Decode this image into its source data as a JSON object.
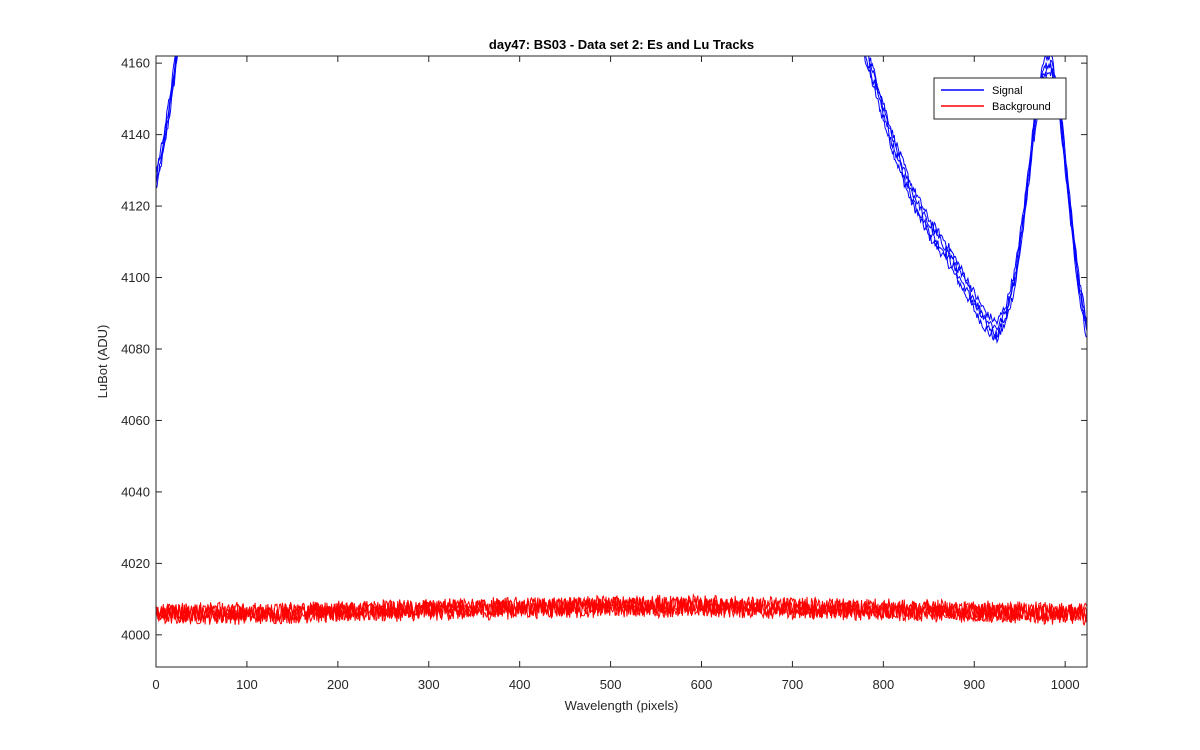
{
  "chart_data": {
    "type": "line",
    "title": "day47: BS03 - Data set 2: Es and Lu Tracks",
    "xlabel": "Wavelength (pixels)",
    "ylabel": "LuBot (ADU)",
    "xlim": [
      0,
      1024
    ],
    "ylim": [
      3991,
      4162
    ],
    "xticks": [
      0,
      100,
      200,
      300,
      400,
      500,
      600,
      700,
      800,
      900,
      1000
    ],
    "yticks": [
      4000,
      4020,
      4040,
      4060,
      4080,
      4100,
      4120,
      4140,
      4160
    ],
    "grid": false,
    "legend": {
      "location": "top-right",
      "entries": [
        "Signal",
        "Background"
      ]
    },
    "colors": {
      "Signal": "#0000ff",
      "Background": "#ff0000",
      "axes": "#262626"
    },
    "series": [
      {
        "name": "Signal",
        "color": "#0000ff",
        "traces": 4,
        "segments": [
          {
            "x": [
              0,
              5,
              10,
              15,
              20,
              25
            ],
            "y": [
              4127,
              4133,
              4140,
              4148,
              4157,
              4168
            ]
          },
          {
            "x": [
              775,
              790,
              810,
              830,
              850,
              870,
              890,
              905,
              915,
              925,
              935,
              945,
              955,
              965,
              975,
              985,
              995,
              1005,
              1015,
              1024
            ],
            "y": [
              4168,
              4155,
              4138,
              4124,
              4114,
              4107,
              4098,
              4091,
              4087,
              4085,
              4090,
              4100,
              4118,
              4140,
              4158,
              4160,
              4145,
              4120,
              4098,
              4085
            ]
          }
        ]
      },
      {
        "name": "Background",
        "color": "#ff0000",
        "traces": 4,
        "x": [
          0,
          100,
          200,
          300,
          400,
          500,
          600,
          700,
          800,
          900,
          1000,
          1024
        ],
        "y": [
          4006,
          4006,
          4006.5,
          4007,
          4007.5,
          4008,
          4008,
          4007.5,
          4007,
          4006.5,
          4006,
          4006
        ]
      }
    ]
  }
}
